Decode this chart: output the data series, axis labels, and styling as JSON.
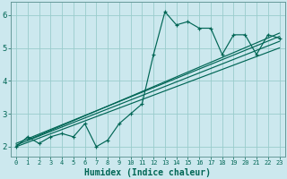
{
  "xlabel": "Humidex (Indice chaleur)",
  "bg_color": "#cce8ee",
  "grid_color": "#99cccc",
  "line_color": "#006655",
  "spine_color": "#669999",
  "x_data": [
    0,
    1,
    2,
    3,
    4,
    5,
    6,
    7,
    8,
    9,
    10,
    11,
    12,
    13,
    14,
    15,
    16,
    17,
    18,
    19,
    20,
    21,
    22,
    23
  ],
  "y_data": [
    2.0,
    2.3,
    2.1,
    2.3,
    2.4,
    2.3,
    2.7,
    2.0,
    2.2,
    2.7,
    3.0,
    3.3,
    4.8,
    6.1,
    5.7,
    5.8,
    5.6,
    5.6,
    4.8,
    5.4,
    5.4,
    4.8,
    5.4,
    5.3
  ],
  "ylim": [
    1.7,
    6.4
  ],
  "xlim": [
    -0.5,
    23.5
  ],
  "yticks": [
    2,
    3,
    4,
    5,
    6
  ],
  "xtick_labels": [
    "0",
    "1",
    "2",
    "3",
    "4",
    "5",
    "6",
    "7",
    "8",
    "9",
    "10",
    "11",
    "12",
    "13",
    "14",
    "15",
    "16",
    "17",
    "18",
    "19",
    "20",
    "21",
    "22",
    "23"
  ],
  "trend_lines": [
    {
      "x0": 0,
      "y0": 2.0,
      "x1": 23,
      "y1": 5.0
    },
    {
      "x0": 0,
      "y0": 2.05,
      "x1": 23,
      "y1": 5.2
    },
    {
      "x0": 0,
      "y0": 2.1,
      "x1": 23,
      "y1": 5.35
    },
    {
      "x0": 1,
      "y0": 2.2,
      "x1": 23,
      "y1": 5.45
    }
  ]
}
